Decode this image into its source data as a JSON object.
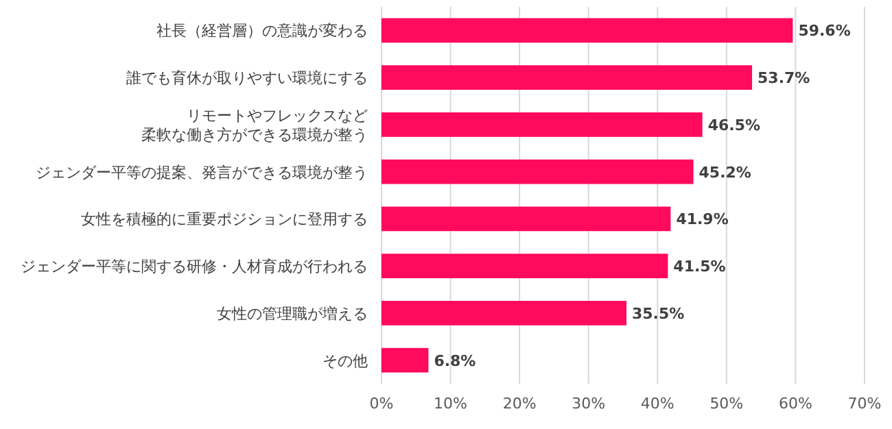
{
  "chart_data": {
    "type": "bar",
    "orientation": "horizontal",
    "categories": [
      "社長（経営層）の意識が変わる",
      "誰でも育休が取りやすい環境にする",
      "リモートやフレックスなど柔軟な働き方ができる環境が整う",
      "ジェンダー平等の提案、発言ができる環境が整う",
      "女性を積極的に重要ポジションに登用する",
      "ジェンダー平等に関する研修・人材育成が行われる",
      "女性の管理職が増える",
      "その他"
    ],
    "values": [
      59.6,
      53.7,
      46.5,
      45.2,
      41.9,
      41.5,
      35.5,
      6.8
    ],
    "value_labels": [
      "59.6%",
      "53.7%",
      "46.5%",
      "45.2%",
      "41.9%",
      "41.5%",
      "35.5%",
      "6.8%"
    ],
    "color": "#ff0a5c",
    "xlim": [
      0,
      70
    ],
    "xticks": [
      {
        "value": 0,
        "label": "0%"
      },
      {
        "value": 10,
        "label": "10%"
      },
      {
        "value": 20,
        "label": "20%"
      },
      {
        "value": 30,
        "label": "30%"
      },
      {
        "value": 40,
        "label": "40%"
      },
      {
        "value": 50,
        "label": "50%"
      },
      {
        "value": 60,
        "label": "60%"
      },
      {
        "value": 70,
        "label": "70%"
      }
    ],
    "grid": "x"
  }
}
